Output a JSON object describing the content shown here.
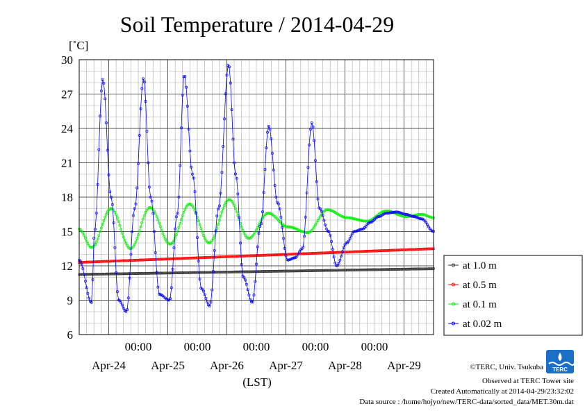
{
  "chart_data": {
    "type": "line",
    "title": "Soil Temperature / 2014-04-29",
    "ylabel": "[˚C]",
    "xlabel": "(LST)",
    "ylim": [
      6,
      30
    ],
    "yticks": [
      "30",
      "27",
      "24",
      "21",
      "18",
      "15",
      "12",
      "9",
      "6"
    ],
    "xlim_days": [
      -0.5,
      5.5
    ],
    "time_ticks": [
      "00:00",
      "00:00",
      "00:00",
      "00:00",
      "00:00"
    ],
    "date_ticks": [
      "Apr-24",
      "Apr-25",
      "Apr-26",
      "Apr-27",
      "Apr-28",
      "Apr-29"
    ],
    "grid": true,
    "legend_position": "right",
    "series": [
      {
        "name": "at 1.0 m",
        "color": "#333333",
        "x": [
          -0.5,
          5.5
        ],
        "y": [
          11.25,
          11.75
        ]
      },
      {
        "name": "at 0.5 m",
        "color": "#ff0000",
        "x": [
          -0.5,
          5.5
        ],
        "y": [
          12.3,
          13.5
        ]
      },
      {
        "name": "at 0.1 m",
        "color": "#00ee00",
        "x": [
          -0.5,
          -0.29,
          0.04,
          0.37,
          0.7,
          1.04,
          1.37,
          1.7,
          2.04,
          2.37,
          2.7,
          3.04,
          3.37,
          3.7,
          4.04,
          4.37,
          4.7,
          5.04,
          5.3,
          5.5
        ],
        "y": [
          15.2,
          13.6,
          17.0,
          13.5,
          17.1,
          13.9,
          17.4,
          14.0,
          17.8,
          14.4,
          16.6,
          15.4,
          14.9,
          16.9,
          16.2,
          15.9,
          16.8,
          16.3,
          16.5,
          16.2
        ]
      },
      {
        "name": "at 0.02 m",
        "color": "#0000ff",
        "x": [
          -0.5,
          -0.29,
          -0.24,
          -0.1,
          0.04,
          0.17,
          0.3,
          0.44,
          0.59,
          0.71,
          0.86,
          1.03,
          1.16,
          1.28,
          1.42,
          1.57,
          1.71,
          1.86,
          2.03,
          2.15,
          2.28,
          2.43,
          2.57,
          2.71,
          2.86,
          3.03,
          3.15,
          3.28,
          3.44,
          3.57,
          3.72,
          3.86,
          4.03,
          4.16,
          4.29,
          4.43,
          4.57,
          4.7,
          4.88,
          5.03,
          5.17,
          5.3,
          5.5
        ],
        "y": [
          12.5,
          8.8,
          15.0,
          28.3,
          18.0,
          9.0,
          8.0,
          17.0,
          28.4,
          18.0,
          9.5,
          9.0,
          16.5,
          28.7,
          20.0,
          10.0,
          8.5,
          17.0,
          29.6,
          20.0,
          11.0,
          8.8,
          15.5,
          24.2,
          17.5,
          12.5,
          12.7,
          13.5,
          24.5,
          17.0,
          15.0,
          12.0,
          14.0,
          15.0,
          15.2,
          15.8,
          16.3,
          16.6,
          16.7,
          16.5,
          16.3,
          16.1,
          15.0
        ]
      }
    ]
  },
  "credits": {
    "copyright": "©TERC, Univ. Tsukuba",
    "observed": "Observed at TERC Tower site",
    "created": "Created Automatically at 2014-04-29/23:32:02",
    "source": "Data source : /home/hojyo/new/TERC-data/sorted_data/MET.30m.dat"
  },
  "logo": {
    "text": "TERC",
    "color": "#1a6fc4"
  }
}
